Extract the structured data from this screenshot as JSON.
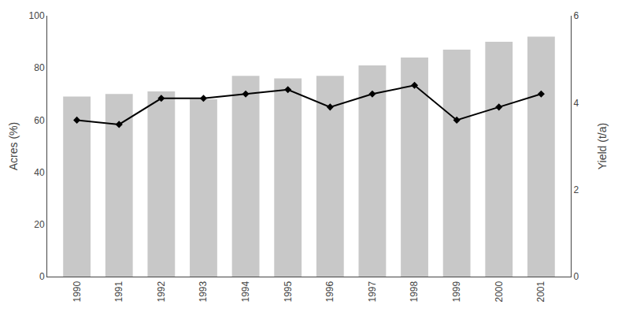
{
  "chart_data": {
    "type": "bar",
    "categories": [
      "1990",
      "1991",
      "1992",
      "1993",
      "1994",
      "1995",
      "1996",
      "1997",
      "1998",
      "1999",
      "2000",
      "2001"
    ],
    "series": [
      {
        "type": "bar",
        "color": "#c8c8c8",
        "values": [
          69,
          70,
          71,
          68,
          77,
          76,
          77,
          81,
          84,
          87,
          90,
          92
        ]
      },
      {
        "type": "line",
        "axis": "y2",
        "color": "#000000",
        "marker": "diamond",
        "values": [
          3.6,
          3.5,
          4.1,
          4.1,
          4.2,
          4.3,
          3.9,
          4.2,
          4.4,
          3.6,
          3.9,
          4.2
        ]
      }
    ],
    "ylabel": "Acres (%)",
    "y2label": "Yield (t/a)",
    "ylim": [
      0,
      100
    ],
    "yticks": [
      0,
      20,
      40,
      60,
      80,
      100
    ],
    "y2lim": [
      0,
      6
    ],
    "y2ticks": [
      0,
      2,
      4,
      6
    ],
    "grid": false
  }
}
